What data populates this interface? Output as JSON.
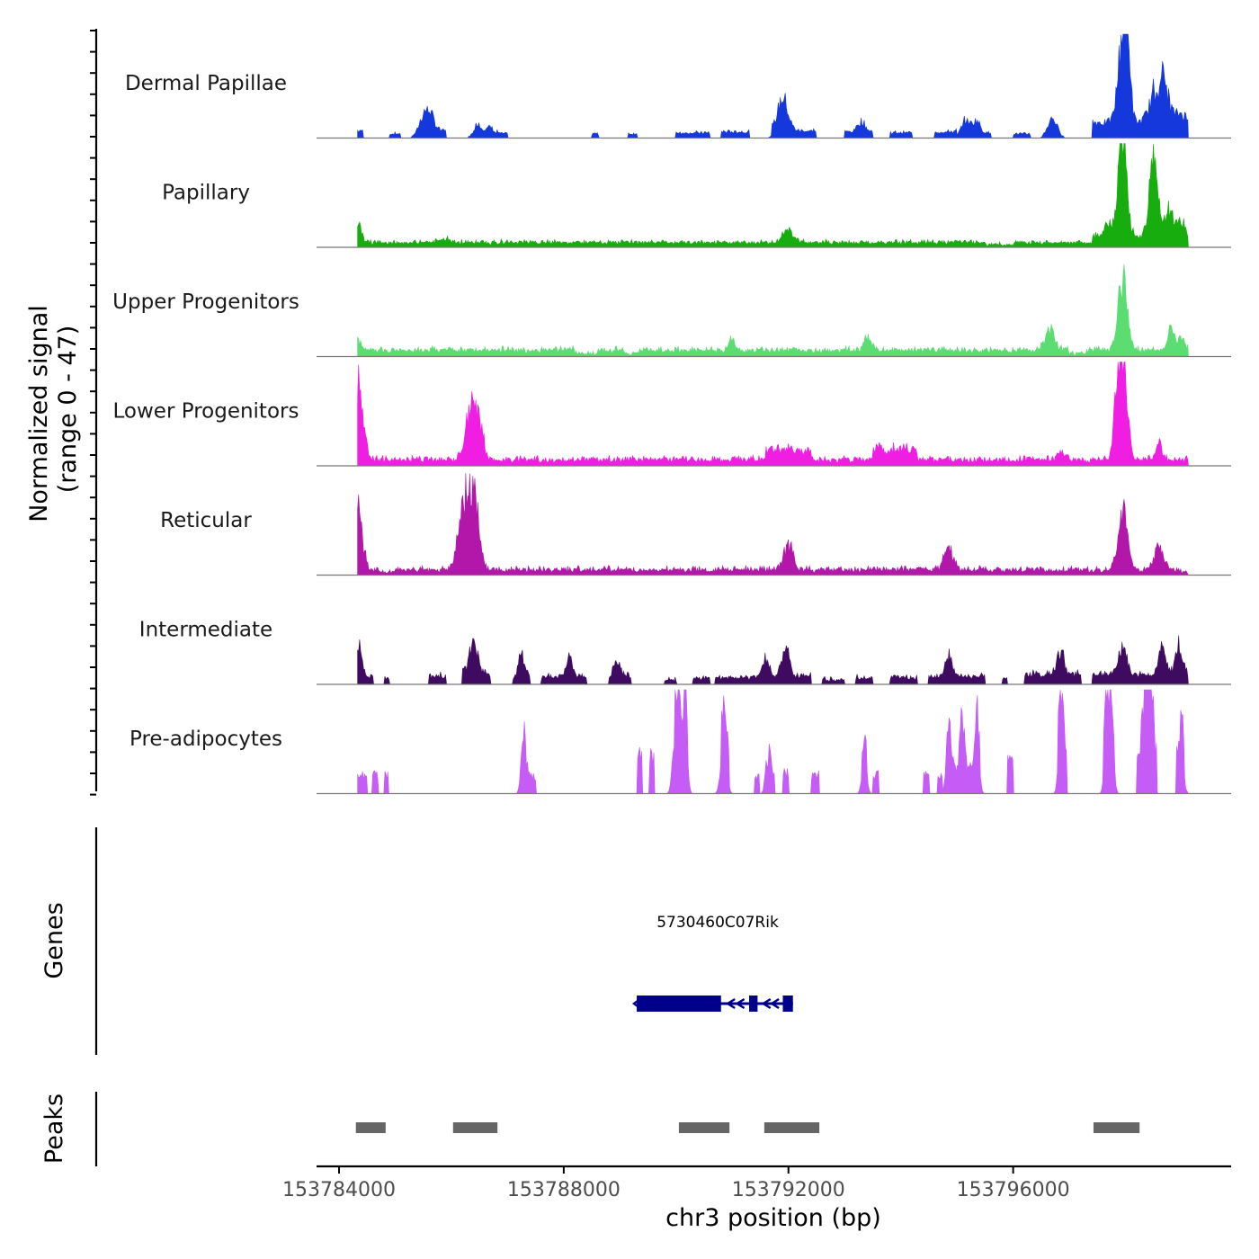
{
  "chart_data": {
    "type": "area",
    "title": "",
    "y_axis_label_line1": "Normalized signal",
    "y_axis_label_line2": "(range 0 - 47)",
    "y_range": [
      0,
      47
    ],
    "x_axis_label": "chr3 position (bp)",
    "x_range": [
      153783600,
      153799880
    ],
    "data_range": [
      153784330,
      153799120
    ],
    "x_ticks": [
      153784000,
      153788000,
      153792000,
      153796000
    ],
    "x_tick_labels": [
      "153784000",
      "153788000",
      "153792000",
      "153796000"
    ],
    "series": [
      {
        "name": "Dermal Papillae",
        "color": "#1438db",
        "baseline": 0.4,
        "noise": 0.7,
        "sparse": true,
        "blocks": [
          [
            153784330,
            153784420,
            6
          ],
          [
            153784900,
            153785100,
            3
          ],
          [
            153785600,
            153785900,
            6
          ],
          [
            153786400,
            153786500,
            4
          ],
          [
            153786800,
            153787000,
            3
          ],
          [
            153788500,
            153788620,
            3
          ],
          [
            153789150,
            153789300,
            3
          ],
          [
            153790000,
            153790600,
            4
          ],
          [
            153790800,
            153791300,
            5
          ],
          [
            153791700,
            153792500,
            6
          ],
          [
            153793000,
            153793500,
            5
          ],
          [
            153793800,
            153794200,
            4
          ],
          [
            153794600,
            153795000,
            5
          ],
          [
            153795200,
            153795600,
            4
          ],
          [
            153796000,
            153796300,
            3
          ],
          [
            153797400,
            153798500,
            14
          ],
          [
            153798600,
            153799120,
            12
          ]
        ],
        "peaks": [
          [
            153785550,
            100,
            26
          ],
          [
            153786500,
            80,
            10
          ],
          [
            153786700,
            70,
            9
          ],
          [
            153791900,
            90,
            32
          ],
          [
            153793300,
            70,
            10
          ],
          [
            153795150,
            70,
            16
          ],
          [
            153795350,
            60,
            12
          ],
          [
            153796700,
            80,
            18
          ],
          [
            153797950,
            80,
            82
          ],
          [
            153798030,
            50,
            65
          ],
          [
            153798620,
            130,
            50
          ],
          [
            153799000,
            80,
            10
          ]
        ]
      },
      {
        "name": "Papillary",
        "color": "#18ad0e",
        "baseline": 3.2,
        "noise": 1.6,
        "sparse": false,
        "blocks": [
          [
            153785700,
            153786000,
            3
          ],
          [
            153797400,
            153798800,
            6
          ],
          [
            153799000,
            153799120,
            3
          ],
          [
            153795500,
            153796000,
            -2
          ]
        ],
        "peaks": [
          [
            153784330,
            60,
            20
          ],
          [
            153792000,
            90,
            12
          ],
          [
            153797700,
            90,
            12
          ],
          [
            153797950,
            70,
            105
          ],
          [
            153798500,
            70,
            80
          ],
          [
            153798800,
            100,
            25
          ],
          [
            153799000,
            80,
            15
          ]
        ]
      },
      {
        "name": "Upper Progenitors",
        "color": "#5bdd72",
        "baseline": 4.2,
        "noise": 2.2,
        "sparse": false,
        "blocks": [
          [
            153788200,
            153788600,
            -3
          ],
          [
            153789050,
            153789350,
            -3
          ],
          [
            153797000,
            153797300,
            -3
          ]
        ],
        "peaks": [
          [
            153784330,
            60,
            10
          ],
          [
            153796650,
            80,
            22
          ],
          [
            153797950,
            80,
            68
          ],
          [
            153798820,
            60,
            25
          ],
          [
            153799000,
            60,
            12
          ],
          [
            153793400,
            60,
            12
          ],
          [
            153791000,
            60,
            10
          ]
        ]
      },
      {
        "name": "Lower Progenitors",
        "color": "#f01ee3",
        "baseline": 3.5,
        "noise": 2.6,
        "sparse": false,
        "blocks": [
          [
            153793500,
            153794300,
            10
          ],
          [
            153791600,
            153792400,
            10
          ]
        ],
        "peaks": [
          [
            153784330,
            50,
            60
          ],
          [
            153784400,
            70,
            30
          ],
          [
            153786350,
            90,
            52
          ],
          [
            153786500,
            70,
            28
          ],
          [
            153797950,
            80,
            95
          ],
          [
            153797850,
            60,
            40
          ],
          [
            153798600,
            60,
            15
          ],
          [
            153796850,
            60,
            10
          ]
        ]
      },
      {
        "name": "Reticular",
        "color": "#b217a9",
        "baseline": 3.0,
        "noise": 2.4,
        "sparse": false,
        "blocks": [
          [
            153784700,
            153785000,
            -2
          ],
          [
            153799000,
            153799120,
            -2
          ]
        ],
        "peaks": [
          [
            153784330,
            50,
            44
          ],
          [
            153784400,
            70,
            20
          ],
          [
            153786300,
            100,
            72
          ],
          [
            153786450,
            70,
            40
          ],
          [
            153786150,
            70,
            22
          ],
          [
            153792000,
            80,
            25
          ],
          [
            153794850,
            80,
            20
          ],
          [
            153797950,
            80,
            55
          ],
          [
            153798600,
            80,
            22
          ]
        ]
      },
      {
        "name": "Intermediate",
        "color": "#3e0b60",
        "baseline": 2.0,
        "noise": 1.8,
        "sparse": true,
        "blocks": [
          [
            153784330,
            153784600,
            4
          ],
          [
            153784800,
            153784900,
            3
          ],
          [
            153785600,
            153785900,
            5
          ],
          [
            153786200,
            153786700,
            6
          ],
          [
            153787200,
            153787400,
            5
          ],
          [
            153787600,
            153788400,
            4
          ],
          [
            153788800,
            153789200,
            4
          ],
          [
            153789800,
            153790000,
            1
          ],
          [
            153790300,
            153790600,
            2
          ],
          [
            153790700,
            153791500,
            3
          ],
          [
            153791700,
            153792400,
            5
          ],
          [
            153792600,
            153793000,
            1
          ],
          [
            153793200,
            153793500,
            3
          ],
          [
            153793800,
            153794300,
            3
          ],
          [
            153794500,
            153795500,
            4
          ],
          [
            153795800,
            153795900,
            2
          ],
          [
            153796200,
            153797200,
            6
          ],
          [
            153797400,
            153799120,
            6
          ]
        ],
        "peaks": [
          [
            153784330,
            60,
            34
          ],
          [
            153786400,
            80,
            28
          ],
          [
            153787250,
            60,
            20
          ],
          [
            153788100,
            60,
            18
          ],
          [
            153788950,
            60,
            16
          ],
          [
            153791600,
            60,
            22
          ],
          [
            153791950,
            60,
            28
          ],
          [
            153794850,
            60,
            20
          ],
          [
            153796850,
            60,
            22
          ],
          [
            153797950,
            70,
            28
          ],
          [
            153798650,
            60,
            25
          ],
          [
            153798950,
            60,
            28
          ]
        ]
      },
      {
        "name": "Pre-adipocytes",
        "color": "#c45cf5",
        "baseline": 0,
        "noise": 0,
        "sparse": true,
        "blocks": [
          [
            153784330,
            153784500,
            18
          ],
          [
            153784600,
            153784700,
            18
          ],
          [
            153784800,
            153784880,
            18
          ],
          [
            153787250,
            153787500,
            16
          ],
          [
            153789300,
            153789400,
            36
          ],
          [
            153789520,
            153789620,
            36
          ],
          [
            153789970,
            153790200,
            50
          ],
          [
            153790800,
            153790950,
            40
          ],
          [
            153791400,
            153791480,
            18
          ],
          [
            153791650,
            153791750,
            18
          ],
          [
            153791900,
            153792000,
            20
          ],
          [
            153792400,
            153792550,
            18
          ],
          [
            153793300,
            153793400,
            18
          ],
          [
            153793500,
            153793600,
            18
          ],
          [
            153794400,
            153794500,
            18
          ],
          [
            153794650,
            153794750,
            18
          ],
          [
            153794850,
            153795400,
            25
          ],
          [
            153795900,
            153796000,
            36
          ],
          [
            153796800,
            153796950,
            35
          ],
          [
            153797600,
            153797800,
            30
          ],
          [
            153798200,
            153798550,
            35
          ],
          [
            153798900,
            153799050,
            36
          ]
        ],
        "peaks": [
          [
            153787280,
            40,
            50
          ],
          [
            153790000,
            50,
            70
          ],
          [
            153790160,
            40,
            62
          ],
          [
            153790850,
            50,
            50
          ],
          [
            153791630,
            40,
            35
          ],
          [
            153793350,
            40,
            40
          ],
          [
            153794850,
            40,
            65
          ],
          [
            153795100,
            40,
            50
          ],
          [
            153795360,
            40,
            52
          ],
          [
            153796850,
            40,
            68
          ],
          [
            153797670,
            40,
            70
          ],
          [
            153797750,
            40,
            60
          ],
          [
            153798350,
            50,
            75
          ],
          [
            153798450,
            40,
            100
          ],
          [
            153799000,
            40,
            35
          ]
        ]
      }
    ],
    "genes_label": "Genes",
    "gene": {
      "name": "5730460C07Rik",
      "strand": "-",
      "color": "#00008b",
      "exons": [
        [
          153789300,
          153790800
        ],
        [
          153791300,
          153791450
        ],
        [
          153791900,
          153792080
        ]
      ]
    },
    "peaks_label": "Peaks",
    "peak_regions": [
      [
        153784300,
        153784830
      ],
      [
        153786030,
        153786820
      ],
      [
        153790050,
        153790950
      ],
      [
        153791570,
        153792550
      ],
      [
        153797430,
        153798250
      ]
    ],
    "peak_color": "#666666"
  }
}
